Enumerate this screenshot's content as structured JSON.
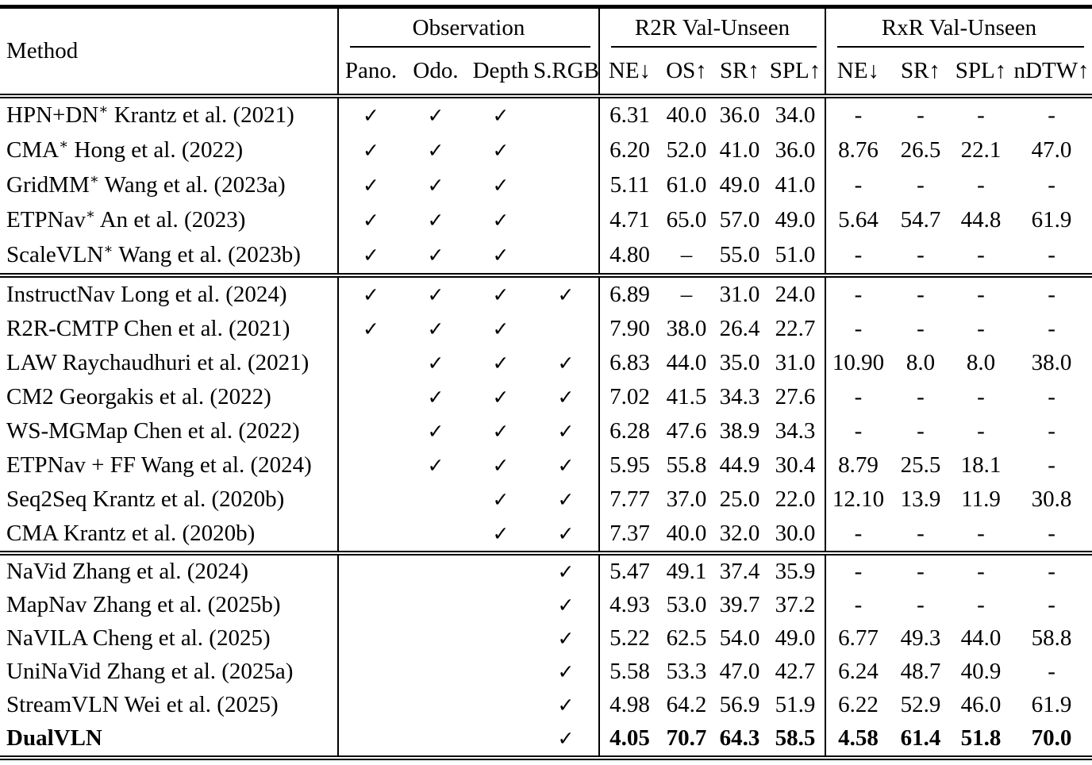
{
  "table": {
    "checkmark": "✓",
    "header": {
      "method_label": "Method",
      "groups": [
        {
          "label": "Observation",
          "cols": [
            "Pano.",
            "Odo.",
            "Depth",
            "S.RGB"
          ]
        },
        {
          "label": "R2R Val-Unseen",
          "cols": [
            "NE↓",
            "OS↑",
            "SR↑",
            "SPL↑"
          ]
        },
        {
          "label": "RxR Val-Unseen",
          "cols": [
            "NE↓",
            "SR↑",
            "SPL↑",
            "nDTW↑"
          ]
        }
      ]
    },
    "sections": [
      {
        "rows": [
          {
            "method": "HPN+DN",
            "sup": "∗",
            "cite": "Krantz et al. (2021)",
            "obs": [
              1,
              1,
              1,
              0
            ],
            "r2r": [
              "6.31",
              "40.0",
              "36.0",
              "34.0"
            ],
            "rxr": [
              "-",
              "-",
              "-",
              "-"
            ],
            "bold": false
          },
          {
            "method": "CMA",
            "sup": "∗",
            "cite": "Hong et al. (2022)",
            "obs": [
              1,
              1,
              1,
              0
            ],
            "r2r": [
              "6.20",
              "52.0",
              "41.0",
              "36.0"
            ],
            "rxr": [
              "8.76",
              "26.5",
              "22.1",
              "47.0"
            ],
            "bold": false
          },
          {
            "method": "GridMM",
            "sup": "∗",
            "cite": "Wang et al. (2023a)",
            "obs": [
              1,
              1,
              1,
              0
            ],
            "r2r": [
              "5.11",
              "61.0",
              "49.0",
              "41.0"
            ],
            "rxr": [
              "-",
              "-",
              "-",
              "-"
            ],
            "bold": false
          },
          {
            "method": "ETPNav",
            "sup": "∗",
            "cite": "An et al. (2023)",
            "obs": [
              1,
              1,
              1,
              0
            ],
            "r2r": [
              "4.71",
              "65.0",
              "57.0",
              "49.0"
            ],
            "rxr": [
              "5.64",
              "54.7",
              "44.8",
              "61.9"
            ],
            "bold": false
          },
          {
            "method": "ScaleVLN",
            "sup": "∗",
            "cite": "Wang et al. (2023b)",
            "obs": [
              1,
              1,
              1,
              0
            ],
            "r2r": [
              "4.80",
              "–",
              "55.0",
              "51.0"
            ],
            "rxr": [
              "-",
              "-",
              "-",
              "-"
            ],
            "bold": false
          }
        ]
      },
      {
        "rows": [
          {
            "method": "InstructNav",
            "sup": "",
            "cite": "Long et al. (2024)",
            "obs": [
              1,
              1,
              1,
              1
            ],
            "r2r": [
              "6.89",
              "–",
              "31.0",
              "24.0"
            ],
            "rxr": [
              "-",
              "-",
              "-",
              "-"
            ],
            "bold": false
          },
          {
            "method": "R2R-CMTP",
            "sup": "",
            "cite": "Chen et al. (2021)",
            "obs": [
              1,
              1,
              1,
              0
            ],
            "r2r": [
              "7.90",
              "38.0",
              "26.4",
              "22.7"
            ],
            "rxr": [
              "-",
              "-",
              "-",
              "-"
            ],
            "bold": false
          },
          {
            "method": "LAW",
            "sup": "",
            "cite": "Raychaudhuri et al. (2021)",
            "obs": [
              0,
              1,
              1,
              1
            ],
            "r2r": [
              "6.83",
              "44.0",
              "35.0",
              "31.0"
            ],
            "rxr": [
              "10.90",
              "8.0",
              "8.0",
              "38.0"
            ],
            "bold": false
          },
          {
            "method": "CM2",
            "sup": "",
            "cite": "Georgakis et al. (2022)",
            "obs": [
              0,
              1,
              1,
              1
            ],
            "r2r": [
              "7.02",
              "41.5",
              "34.3",
              "27.6"
            ],
            "rxr": [
              "-",
              "-",
              "-",
              "-"
            ],
            "bold": false
          },
          {
            "method": "WS-MGMap",
            "sup": "",
            "cite": "Chen et al. (2022)",
            "obs": [
              0,
              1,
              1,
              1
            ],
            "r2r": [
              "6.28",
              "47.6",
              "38.9",
              "34.3"
            ],
            "rxr": [
              "-",
              "-",
              "-",
              "-"
            ],
            "bold": false
          },
          {
            "method": "ETPNav + FF",
            "sup": "",
            "cite": "Wang et al. (2024)",
            "obs": [
              0,
              1,
              1,
              1
            ],
            "r2r": [
              "5.95",
              "55.8",
              "44.9",
              "30.4"
            ],
            "rxr": [
              "8.79",
              "25.5",
              "18.1",
              "-"
            ],
            "bold": false
          },
          {
            "method": "Seq2Seq",
            "sup": "",
            "cite": "Krantz et al. (2020b)",
            "obs": [
              0,
              0,
              1,
              1
            ],
            "r2r": [
              "7.77",
              "37.0",
              "25.0",
              "22.0"
            ],
            "rxr": [
              "12.10",
              "13.9",
              "11.9",
              "30.8"
            ],
            "bold": false
          },
          {
            "method": "CMA",
            "sup": "",
            "cite": "Krantz et al. (2020b)",
            "obs": [
              0,
              0,
              1,
              1
            ],
            "r2r": [
              "7.37",
              "40.0",
              "32.0",
              "30.0"
            ],
            "rxr": [
              "-",
              "-",
              "-",
              "-"
            ],
            "bold": false
          }
        ]
      },
      {
        "rows": [
          {
            "method": "NaVid",
            "sup": "",
            "cite": "Zhang et al. (2024)",
            "obs": [
              0,
              0,
              0,
              1
            ],
            "r2r": [
              "5.47",
              "49.1",
              "37.4",
              "35.9"
            ],
            "rxr": [
              "-",
              "-",
              "-",
              "-"
            ],
            "bold": false
          },
          {
            "method": "MapNav",
            "sup": "",
            "cite": "Zhang et al. (2025b)",
            "obs": [
              0,
              0,
              0,
              1
            ],
            "r2r": [
              "4.93",
              "53.0",
              "39.7",
              "37.2"
            ],
            "rxr": [
              "-",
              "-",
              "-",
              "-"
            ],
            "bold": false
          },
          {
            "method": "NaVILA",
            "sup": "",
            "cite": "Cheng et al. (2025)",
            "obs": [
              0,
              0,
              0,
              1
            ],
            "r2r": [
              "5.22",
              "62.5",
              "54.0",
              "49.0"
            ],
            "rxr": [
              "6.77",
              "49.3",
              "44.0",
              "58.8"
            ],
            "bold": false
          },
          {
            "method": "UniNaVid",
            "sup": "",
            "cite": "Zhang et al. (2025a)",
            "obs": [
              0,
              0,
              0,
              1
            ],
            "r2r": [
              "5.58",
              "53.3",
              "47.0",
              "42.7"
            ],
            "rxr": [
              "6.24",
              "48.7",
              "40.9",
              "-"
            ],
            "bold": false
          },
          {
            "method": "StreamVLN",
            "sup": "",
            "cite": "Wei et al. (2025)",
            "obs": [
              0,
              0,
              0,
              1
            ],
            "r2r": [
              "4.98",
              "64.2",
              "56.9",
              "51.9"
            ],
            "rxr": [
              "6.22",
              "52.9",
              "46.0",
              "61.9"
            ],
            "bold": false
          },
          {
            "method": "DualVLN",
            "sup": "",
            "cite": "",
            "obs": [
              0,
              0,
              0,
              1
            ],
            "r2r": [
              "4.05",
              "70.7",
              "64.3",
              "58.5"
            ],
            "rxr": [
              "4.58",
              "61.4",
              "51.8",
              "70.0"
            ],
            "bold": true
          }
        ]
      }
    ]
  }
}
